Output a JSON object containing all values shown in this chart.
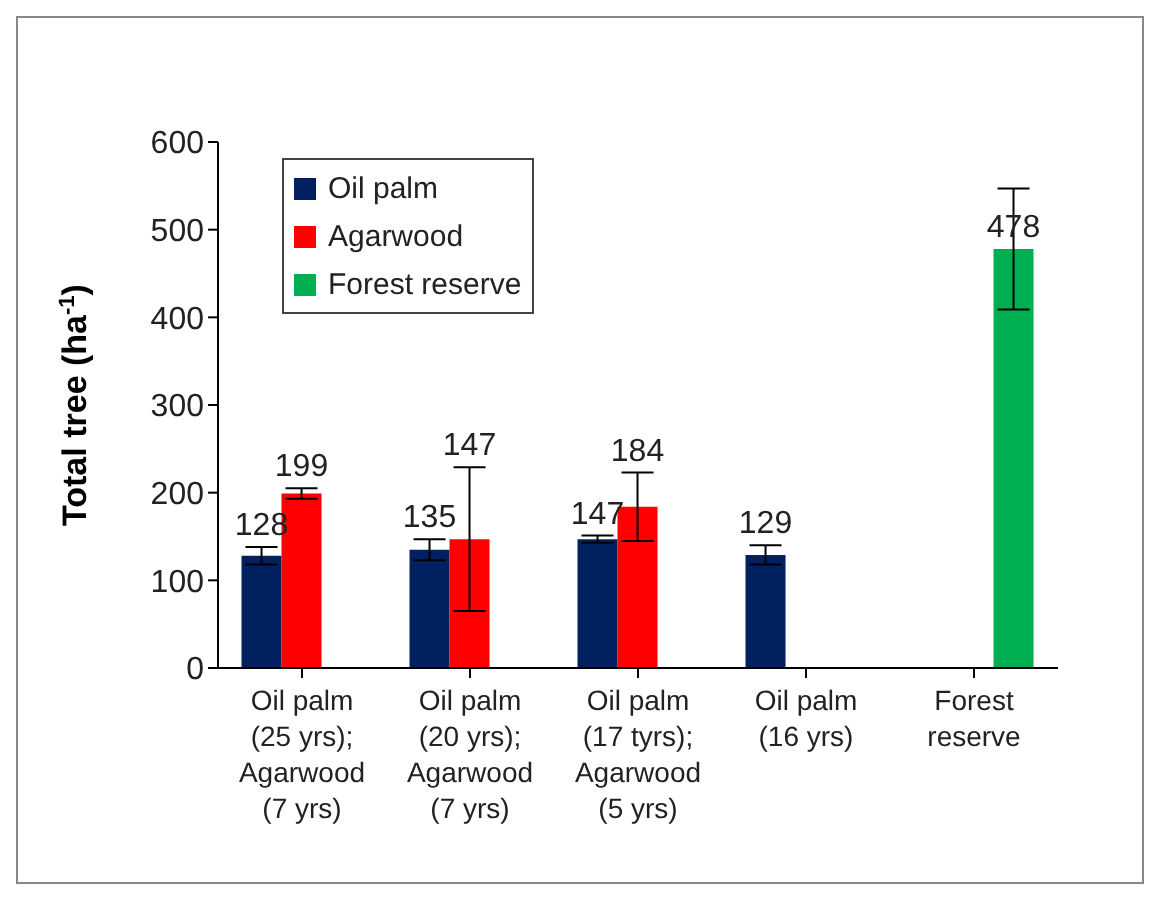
{
  "chart_data": {
    "type": "bar",
    "ylabel": "Total tree (ha$^{-1}$)",
    "categories": [
      "Oil palm (25 yrs); Agarwood (7 yrs)",
      "Oil palm (20 yrs); Agarwood (7 yrs)",
      "Oil palm (17 tyrs); Agarwood (5 yrs)",
      "Oil palm (16 yrs)",
      "Forest reserve"
    ],
    "series": [
      {
        "name": "Oil palm",
        "color": "#002060",
        "values": [
          128,
          135,
          147,
          129,
          null
        ],
        "errors": [
          10,
          12,
          4,
          11,
          null
        ]
      },
      {
        "name": "Agarwood",
        "color": "#ff0000",
        "values": [
          199,
          147,
          184,
          null,
          null
        ],
        "errors": [
          6,
          82,
          39,
          null,
          null
        ]
      },
      {
        "name": "Forest reserve",
        "color": "#00b050",
        "values": [
          null,
          null,
          null,
          null,
          478
        ],
        "errors": [
          null,
          null,
          null,
          null,
          69
        ]
      }
    ],
    "ylim": [
      0,
      600
    ],
    "yticks": [
      0,
      100,
      200,
      300,
      400,
      500,
      600
    ],
    "grid": false,
    "legend": "top left",
    "data_labels": true
  }
}
